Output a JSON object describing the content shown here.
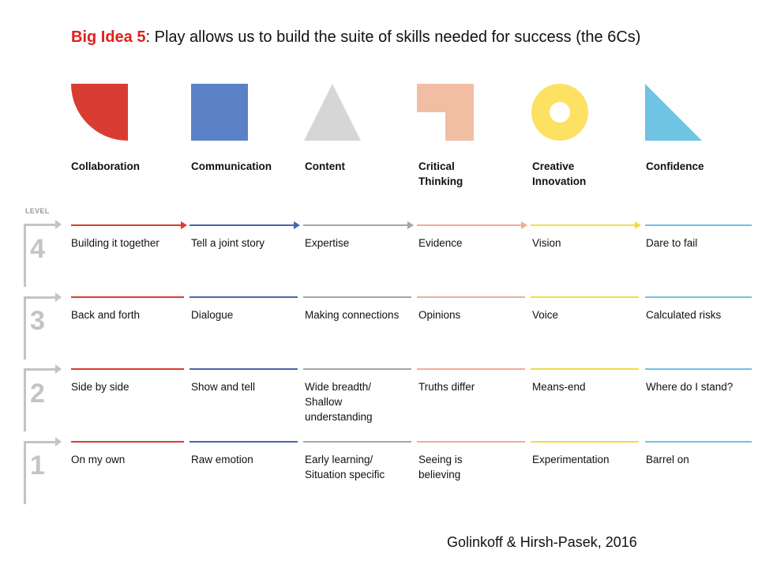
{
  "title": {
    "big_idea": "Big Idea 5",
    "rest": ": Play allows us to build the suite of skills needed for success (the 6Cs)"
  },
  "columns": [
    {
      "key": "collab",
      "heading": "Collaboration",
      "color": "#d93c33",
      "shape": "quarter-circle"
    },
    {
      "key": "comm",
      "heading": "Communication",
      "color": "#5b82c6",
      "shape": "square"
    },
    {
      "key": "content",
      "heading": "Content",
      "color": "#d6d6d6",
      "shape": "triangle"
    },
    {
      "key": "critical",
      "heading": "Critical Thinking",
      "color": "#f1bea4",
      "shape": "l-shape"
    },
    {
      "key": "creative",
      "heading": "Creative Innovation",
      "color": "#fde163",
      "shape": "ring"
    },
    {
      "key": "conf",
      "heading": "Confidence",
      "color": "#6fc3e3",
      "shape": "right-triangle"
    }
  ],
  "level_label": "LEVEL",
  "levels": [
    {
      "number": "4",
      "cells": [
        "Building it together",
        "Tell a joint story",
        "Expertise",
        "Evidence",
        "Vision",
        "Dare to fail"
      ]
    },
    {
      "number": "3",
      "cells": [
        "Back and forth",
        "Dialogue",
        "Making connections",
        "Opinions",
        "Voice",
        "Calculated risks"
      ]
    },
    {
      "number": "2",
      "cells": [
        "Side by side",
        "Show and tell",
        "Wide breadth/ Shallow understanding",
        "Truths differ",
        "Means-end",
        "Where do I stand?"
      ]
    },
    {
      "number": "1",
      "cells": [
        "On my own",
        "Raw emotion",
        "Early learning/ Situation specific",
        "Seeing is believing",
        "Experimentation",
        "Barrel on"
      ]
    }
  ],
  "citation": "Golinkoff & Hirsh-Pasek, 2016"
}
